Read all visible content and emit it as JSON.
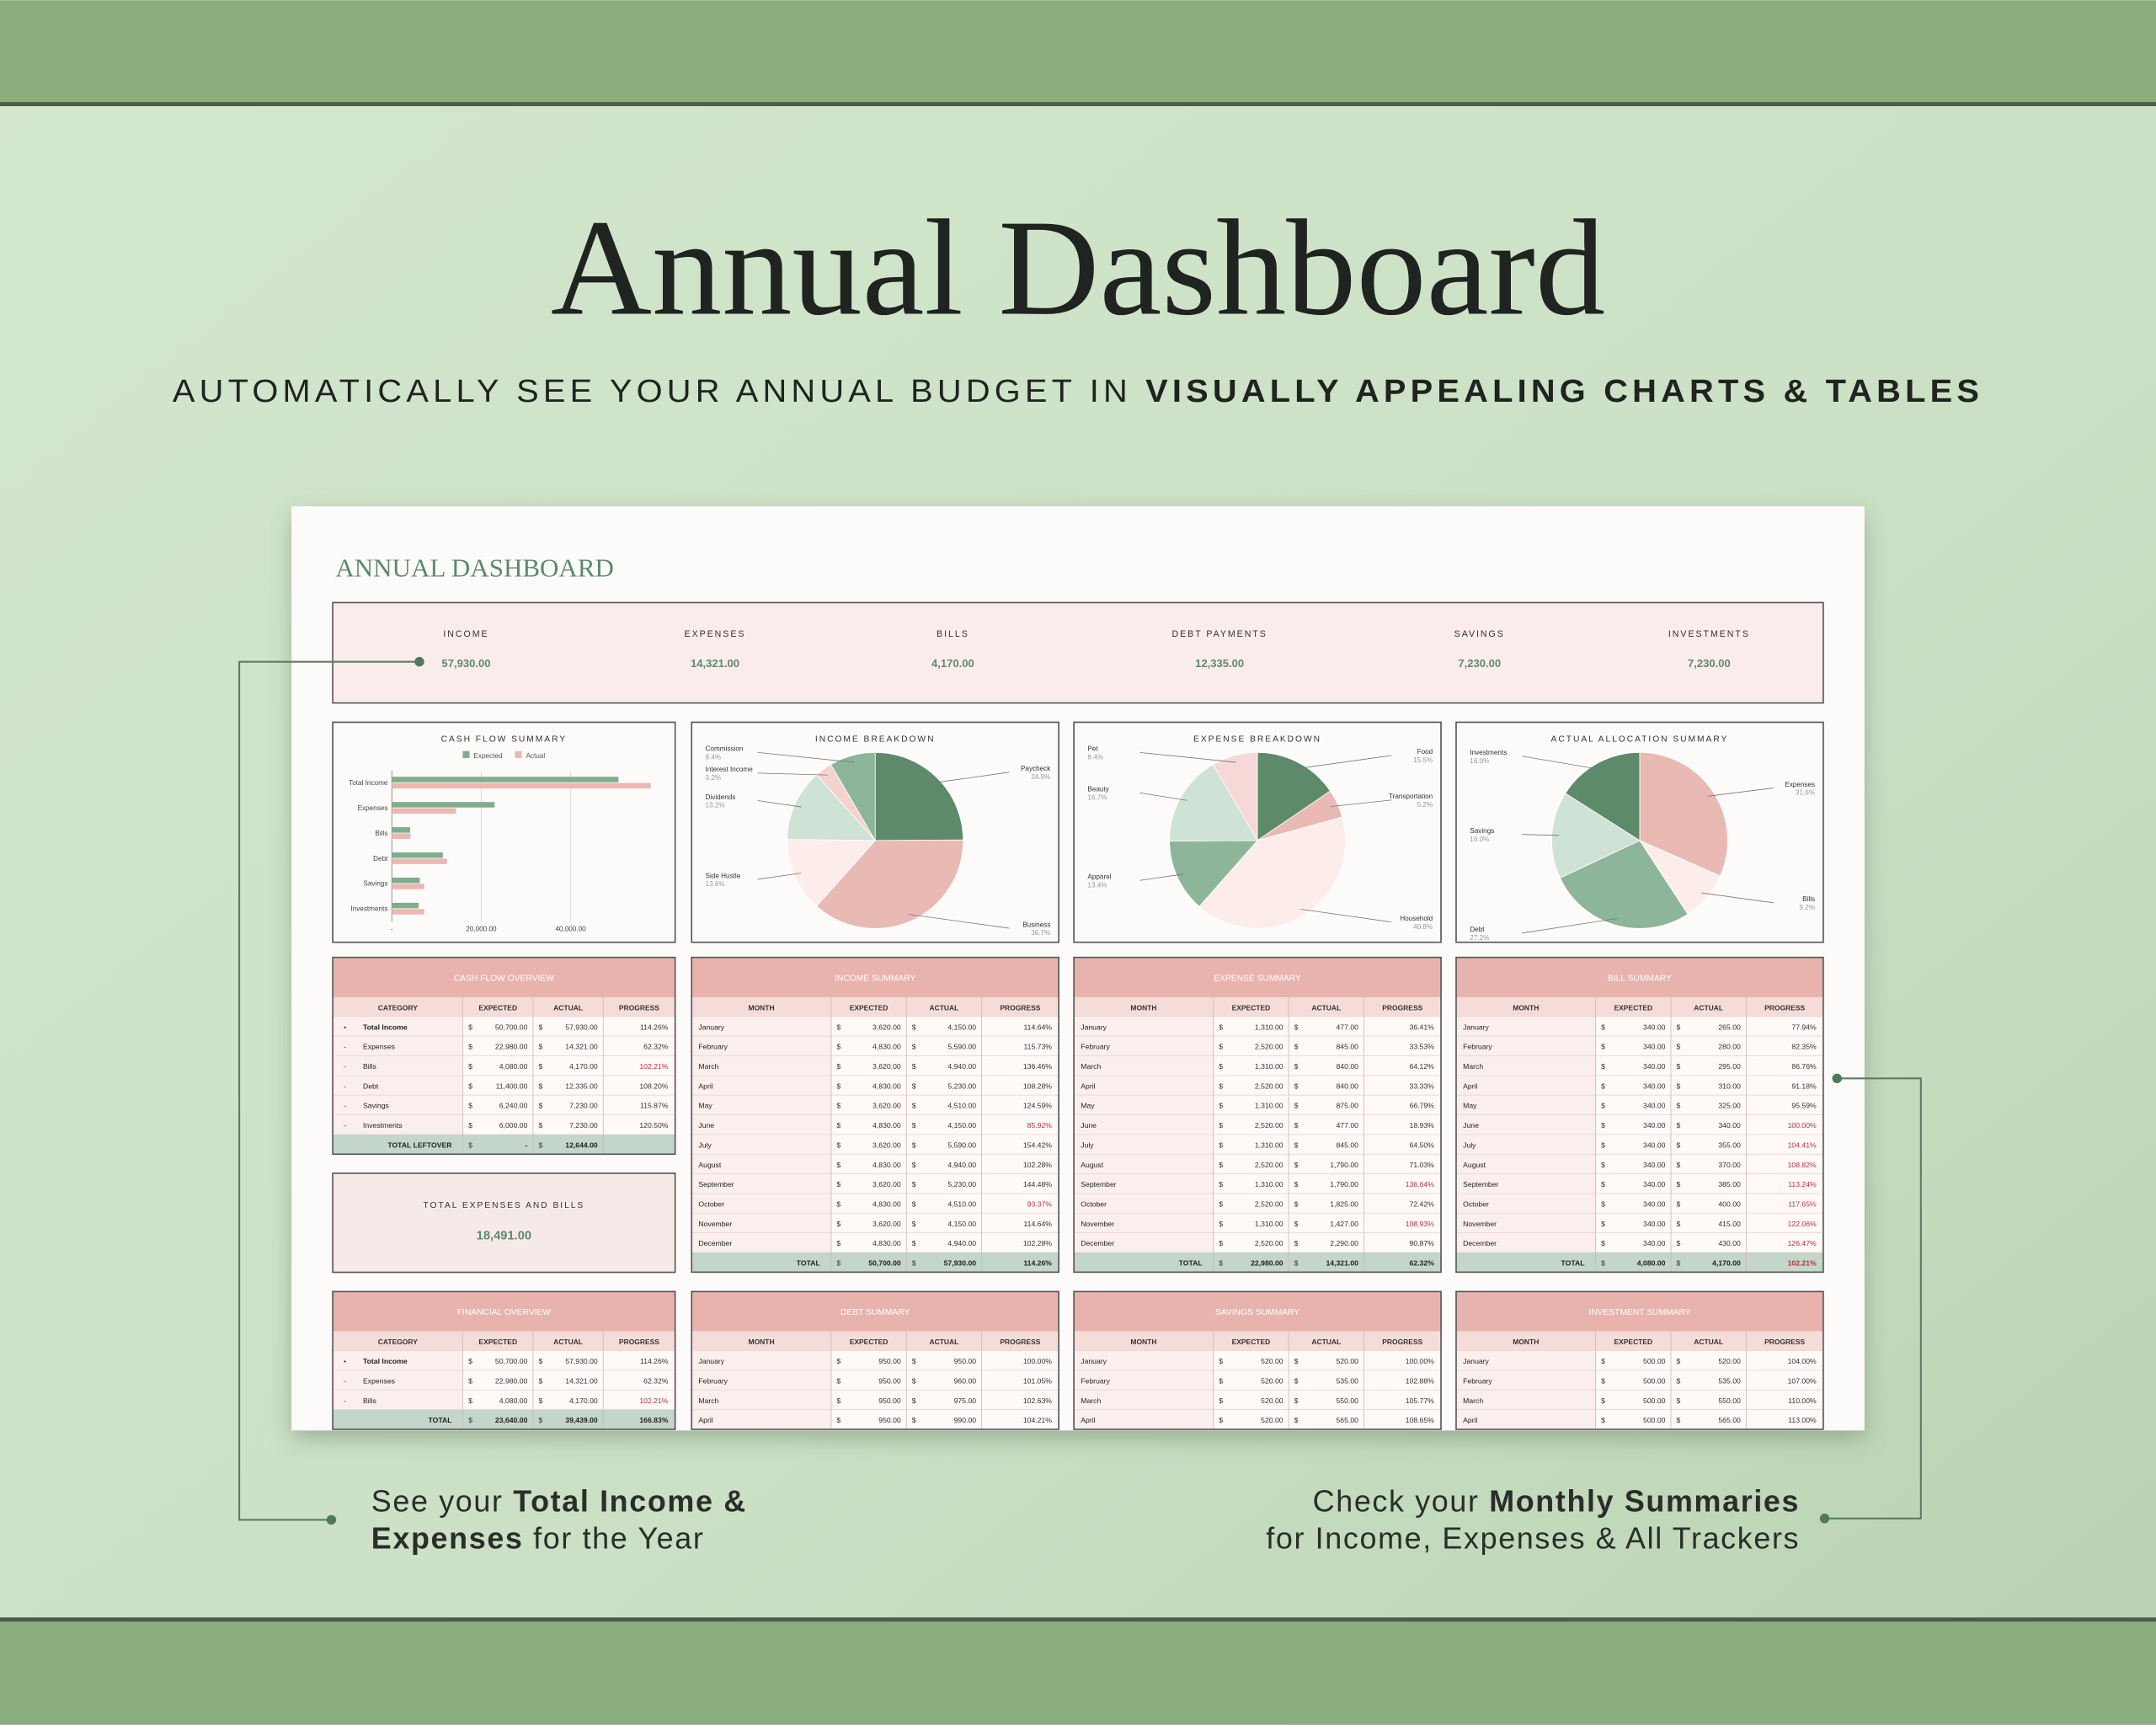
{
  "header": {
    "title": "Annual Dashboard",
    "subtitle": [
      "AUTOMATICALLY SEE YOUR ANNUAL BUDGET IN ",
      "VISUALLY APPEALING CHARTS & TABLES"
    ]
  },
  "callouts": {
    "left": [
      [
        {
          "text": "See your ",
          "bold": false
        },
        {
          "text": "Total Income &",
          "bold": true
        }
      ],
      [
        {
          "text": "Expenses",
          "bold": true
        },
        {
          "text": " for the Year",
          "bold": false
        }
      ]
    ],
    "right": [
      [
        {
          "text": "Check your ",
          "bold": false
        },
        {
          "text": "Monthly Summaries",
          "bold": true
        }
      ],
      [
        {
          "text": "for Income, Expenses & All Trackers",
          "bold": false
        }
      ]
    ]
  },
  "dashboard": {
    "title": "ANNUAL DASHBOARD",
    "currency": "$",
    "cards": [
      {
        "label": "INCOME",
        "value": "57,930.00"
      },
      {
        "label": "EXPENSES",
        "value": "14,321.00"
      },
      {
        "label": "BILLS",
        "value": "4,170.00"
      },
      {
        "label": "DEBT PAYMENTS",
        "value": "12,335.00"
      },
      {
        "label": "SAVINGS",
        "value": "7,230.00"
      },
      {
        "label": "INVESTMENTS",
        "value": "7,230.00"
      }
    ],
    "total_box": {
      "label": "TOTAL EXPENSES AND BILLS",
      "value": "18,491.00"
    },
    "tables": [
      {
        "title": "CASH FLOW OVERVIEW",
        "columns": [
          "CATEGORY",
          "EXPECTED",
          "ACTUAL",
          "PROGRESS"
        ],
        "markers": [
          "•",
          "-",
          "-",
          "-",
          "-",
          "-"
        ],
        "bold_rows": [
          0
        ],
        "rows": [
          [
            "Total Income",
            "50,700.00",
            "57,930.00",
            "114.26%"
          ],
          [
            "Expenses",
            "22,980.00",
            "14,321.00",
            "62.32%"
          ],
          [
            "Bills",
            "4,080.00",
            "4,170.00",
            "102.21%"
          ],
          [
            "Debt",
            "11,400.00",
            "12,335.00",
            "108.20%"
          ],
          [
            "Savings",
            "6,240.00",
            "7,230.00",
            "115.87%"
          ],
          [
            "Investments",
            "6,000.00",
            "7,230.00",
            "120.50%"
          ]
        ],
        "alert_rows": [
          2
        ],
        "total": [
          "TOTAL LEFTOVER",
          "-",
          "12,644.00"
        ],
        "total_alert": false
      },
      {
        "title": "INCOME SUMMARY",
        "columns": [
          "MONTH",
          "EXPECTED",
          "ACTUAL",
          "PROGRESS"
        ],
        "rows": [
          [
            "January",
            "3,620.00",
            "4,150.00",
            "114.64%"
          ],
          [
            "February",
            "4,830.00",
            "5,590.00",
            "115.73%"
          ],
          [
            "March",
            "3,620.00",
            "4,940.00",
            "136.46%"
          ],
          [
            "April",
            "4,830.00",
            "5,230.00",
            "108.28%"
          ],
          [
            "May",
            "3,620.00",
            "4,510.00",
            "124.59%"
          ],
          [
            "June",
            "4,830.00",
            "4,150.00",
            "85.92%"
          ],
          [
            "July",
            "3,620.00",
            "5,590.00",
            "154.42%"
          ],
          [
            "August",
            "4,830.00",
            "4,940.00",
            "102.28%"
          ],
          [
            "September",
            "3,620.00",
            "5,230.00",
            "144.48%"
          ],
          [
            "October",
            "4,830.00",
            "4,510.00",
            "93.37%"
          ],
          [
            "November",
            "3,620.00",
            "4,150.00",
            "114.64%"
          ],
          [
            "December",
            "4,830.00",
            "4,940.00",
            "102.28%"
          ]
        ],
        "alert_rows": [
          5,
          9
        ],
        "total": [
          "TOTAL",
          "50,700.00",
          "57,930.00",
          "114.26%"
        ],
        "total_alert": false
      },
      {
        "title": "EXPENSE SUMMARY",
        "columns": [
          "MONTH",
          "EXPECTED",
          "ACTUAL",
          "PROGRESS"
        ],
        "rows": [
          [
            "January",
            "1,310.00",
            "477.00",
            "36.41%"
          ],
          [
            "February",
            "2,520.00",
            "845.00",
            "33.53%"
          ],
          [
            "March",
            "1,310.00",
            "840.00",
            "64.12%"
          ],
          [
            "April",
            "2,520.00",
            "840.00",
            "33.33%"
          ],
          [
            "May",
            "1,310.00",
            "875.00",
            "66.79%"
          ],
          [
            "June",
            "2,520.00",
            "477.00",
            "18.93%"
          ],
          [
            "July",
            "1,310.00",
            "845.00",
            "64.50%"
          ],
          [
            "August",
            "2,520.00",
            "1,790.00",
            "71.03%"
          ],
          [
            "September",
            "1,310.00",
            "1,790.00",
            "136.64%"
          ],
          [
            "October",
            "2,520.00",
            "1,825.00",
            "72.42%"
          ],
          [
            "November",
            "1,310.00",
            "1,427.00",
            "108.93%"
          ],
          [
            "December",
            "2,520.00",
            "2,290.00",
            "90.87%"
          ]
        ],
        "alert_rows": [
          8,
          10
        ],
        "total": [
          "TOTAL",
          "22,980.00",
          "14,321.00",
          "62.32%"
        ],
        "total_alert": false
      },
      {
        "title": "BILL SUMMARY",
        "columns": [
          "MONTH",
          "EXPECTED",
          "ACTUAL",
          "PROGRESS"
        ],
        "rows": [
          [
            "January",
            "340.00",
            "265.00",
            "77.94%"
          ],
          [
            "February",
            "340.00",
            "280.00",
            "82.35%"
          ],
          [
            "March",
            "340.00",
            "295.00",
            "86.76%"
          ],
          [
            "April",
            "340.00",
            "310.00",
            "91.18%"
          ],
          [
            "May",
            "340.00",
            "325.00",
            "95.59%"
          ],
          [
            "June",
            "340.00",
            "340.00",
            "100.00%"
          ],
          [
            "July",
            "340.00",
            "355.00",
            "104.41%"
          ],
          [
            "August",
            "340.00",
            "370.00",
            "108.82%"
          ],
          [
            "September",
            "340.00",
            "385.00",
            "113.24%"
          ],
          [
            "October",
            "340.00",
            "400.00",
            "117.65%"
          ],
          [
            "November",
            "340.00",
            "415.00",
            "122.06%"
          ],
          [
            "December",
            "340.00",
            "430.00",
            "126.47%"
          ]
        ],
        "alert_rows": [
          5,
          6,
          7,
          8,
          9,
          10,
          11
        ],
        "total": [
          "TOTAL",
          "4,080.00",
          "4,170.00",
          "102.21%"
        ],
        "total_alert": true
      },
      {
        "title": "FINANCIAL OVERVIEW",
        "columns": [
          "CATEGORY",
          "EXPECTED",
          "ACTUAL",
          "PROGRESS"
        ],
        "markers": [
          "•",
          "-",
          "-"
        ],
        "bold_rows": [
          0
        ],
        "rows": [
          [
            "Total Income",
            "50,700.00",
            "57,930.00",
            "114.26%"
          ],
          [
            "Expenses",
            "22,980.00",
            "14,321.00",
            "62.32%"
          ],
          [
            "Bills",
            "4,080.00",
            "4,170.00",
            "102.21%"
          ]
        ],
        "alert_rows": [
          2
        ],
        "total": [
          "TOTAL",
          "23,640.00",
          "39,439.00",
          "166.83%"
        ],
        "total_alert": false
      },
      {
        "title": "DEBT SUMMARY",
        "columns": [
          "MONTH",
          "EXPECTED",
          "ACTUAL",
          "PROGRESS"
        ],
        "rows": [
          [
            "January",
            "950.00",
            "950.00",
            "100.00%"
          ],
          [
            "February",
            "950.00",
            "960.00",
            "101.05%"
          ],
          [
            "March",
            "950.00",
            "975.00",
            "102.63%"
          ],
          [
            "April",
            "950.00",
            "990.00",
            "104.21%"
          ]
        ],
        "alert_rows": []
      },
      {
        "title": "SAVINGS SUMMARY",
        "columns": [
          "MONTH",
          "EXPECTED",
          "ACTUAL",
          "PROGRESS"
        ],
        "rows": [
          [
            "January",
            "520.00",
            "520.00",
            "100.00%"
          ],
          [
            "February",
            "520.00",
            "535.00",
            "102.88%"
          ],
          [
            "March",
            "520.00",
            "550.00",
            "105.77%"
          ],
          [
            "April",
            "520.00",
            "565.00",
            "108.65%"
          ]
        ],
        "alert_rows": []
      },
      {
        "title": "INVESTMENT SUMMARY",
        "columns": [
          "MONTH",
          "EXPECTED",
          "ACTUAL",
          "PROGRESS"
        ],
        "rows": [
          [
            "January",
            "500.00",
            "520.00",
            "104.00%"
          ],
          [
            "February",
            "500.00",
            "535.00",
            "107.00%"
          ],
          [
            "March",
            "500.00",
            "550.00",
            "110.00%"
          ],
          [
            "April",
            "500.00",
            "565.00",
            "113.00%"
          ]
        ],
        "alert_rows": []
      }
    ]
  },
  "chart_data": [
    {
      "type": "bar",
      "orientation": "horizontal",
      "title": "CASH FLOW SUMMARY",
      "categories": [
        "Total Income",
        "Expenses",
        "Bills",
        "Debt",
        "Savings",
        "Investments"
      ],
      "series": [
        {
          "name": "Expected",
          "color": "#7fae8c",
          "values": [
            50700,
            22980,
            4080,
            11400,
            6240,
            6000
          ]
        },
        {
          "name": "Actual",
          "color": "#eab8b2",
          "values": [
            57930,
            14321,
            4170,
            12335,
            7230,
            7230
          ]
        }
      ],
      "xlim": [
        0,
        60000
      ],
      "xticks": [
        {
          "value": 0,
          "label": "-"
        },
        {
          "value": 20000,
          "label": "20,000.00"
        },
        {
          "value": 40000,
          "label": "40,000.00"
        }
      ],
      "grid": true,
      "legend": "top"
    },
    {
      "type": "pie",
      "title": "INCOME BREAKDOWN",
      "categories": [
        "Paycheck",
        "Business",
        "Side Hustle",
        "Dividends",
        "Interest Income",
        "Commission"
      ],
      "values": [
        24.9,
        36.7,
        13.6,
        13.2,
        3.2,
        8.4
      ],
      "value_labels": [
        "24.9%",
        "36.7%",
        "13.6%",
        "13.2%",
        "3.2%",
        "8.4%"
      ],
      "colors": [
        "#5e8a6c",
        "#e9b9b3",
        "#fcedeb",
        "#cfe2d6",
        "#f4d3cf",
        "#8db59a"
      ]
    },
    {
      "type": "pie",
      "title": "EXPENSE BREAKDOWN",
      "categories": [
        "Food",
        "Transportation",
        "Household",
        "Apparel",
        "Beauty",
        "Pet"
      ],
      "values": [
        15.5,
        5.2,
        40.8,
        13.4,
        16.7,
        8.4
      ],
      "value_labels": [
        "15.5%",
        "5.2%",
        "40.8%",
        "13.4%",
        "16.7%",
        "8.4%"
      ],
      "colors": [
        "#5e8a6c",
        "#e9b9b3",
        "#fcedeb",
        "#8db59a",
        "#cfe2d6",
        "#f6d9d6"
      ]
    },
    {
      "type": "pie",
      "title": "ACTUAL ALLOCATION SUMMARY",
      "categories": [
        "Expenses",
        "Bills",
        "Debt",
        "Savings",
        "Investments"
      ],
      "values": [
        31.6,
        9.2,
        27.2,
        16.0,
        16.0
      ],
      "value_labels": [
        "31.6%",
        "9.2%",
        "27.2%",
        "16.0%",
        "16.0%"
      ],
      "colors": [
        "#e9b9b3",
        "#fcedeb",
        "#8db59a",
        "#cfe2d6",
        "#5e8a6c"
      ]
    }
  ]
}
